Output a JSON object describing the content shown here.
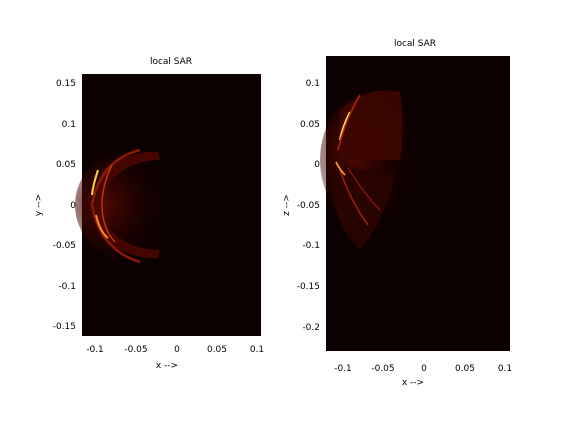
{
  "chart_data": [
    {
      "type": "heatmap",
      "title": "local SAR",
      "xlabel": "x -->",
      "ylabel": "y -->",
      "xlim": [
        -0.12,
        0.1
      ],
      "ylim": [
        -0.165,
        0.165
      ],
      "xticks": [
        -0.1,
        -0.05,
        0,
        0.05,
        0.1
      ],
      "yticks": [
        -0.15,
        -0.1,
        -0.05,
        0,
        0.05,
        0.1,
        0.15
      ],
      "xtick_labels": [
        "-0.1",
        "-0.05",
        "0",
        "0.05",
        "0.1"
      ],
      "ytick_labels": [
        "-0.15",
        "-0.1",
        "-0.05",
        "0",
        "0.05",
        "0.1",
        "0.15"
      ],
      "colormap": "hot",
      "background": "#0d0000"
    },
    {
      "type": "heatmap",
      "title": "local SAR",
      "xlabel": "x -->",
      "ylabel": "z -->",
      "xlim": [
        -0.12,
        0.1
      ],
      "ylim": [
        -0.225,
        0.125
      ],
      "xticks": [
        -0.1,
        -0.05,
        0,
        0.05,
        0.1
      ],
      "yticks": [
        -0.2,
        -0.15,
        -0.1,
        -0.05,
        0,
        0.05,
        0.1
      ],
      "xtick_labels": [
        "-0.1",
        "-0.05",
        "0",
        "0.05",
        "0.1"
      ],
      "ytick_labels": [
        "-0.2",
        "-0.15",
        "-0.1",
        "-0.05",
        "0",
        "0.05",
        "0.1"
      ],
      "colormap": "hot",
      "background": "#0d0000"
    }
  ]
}
